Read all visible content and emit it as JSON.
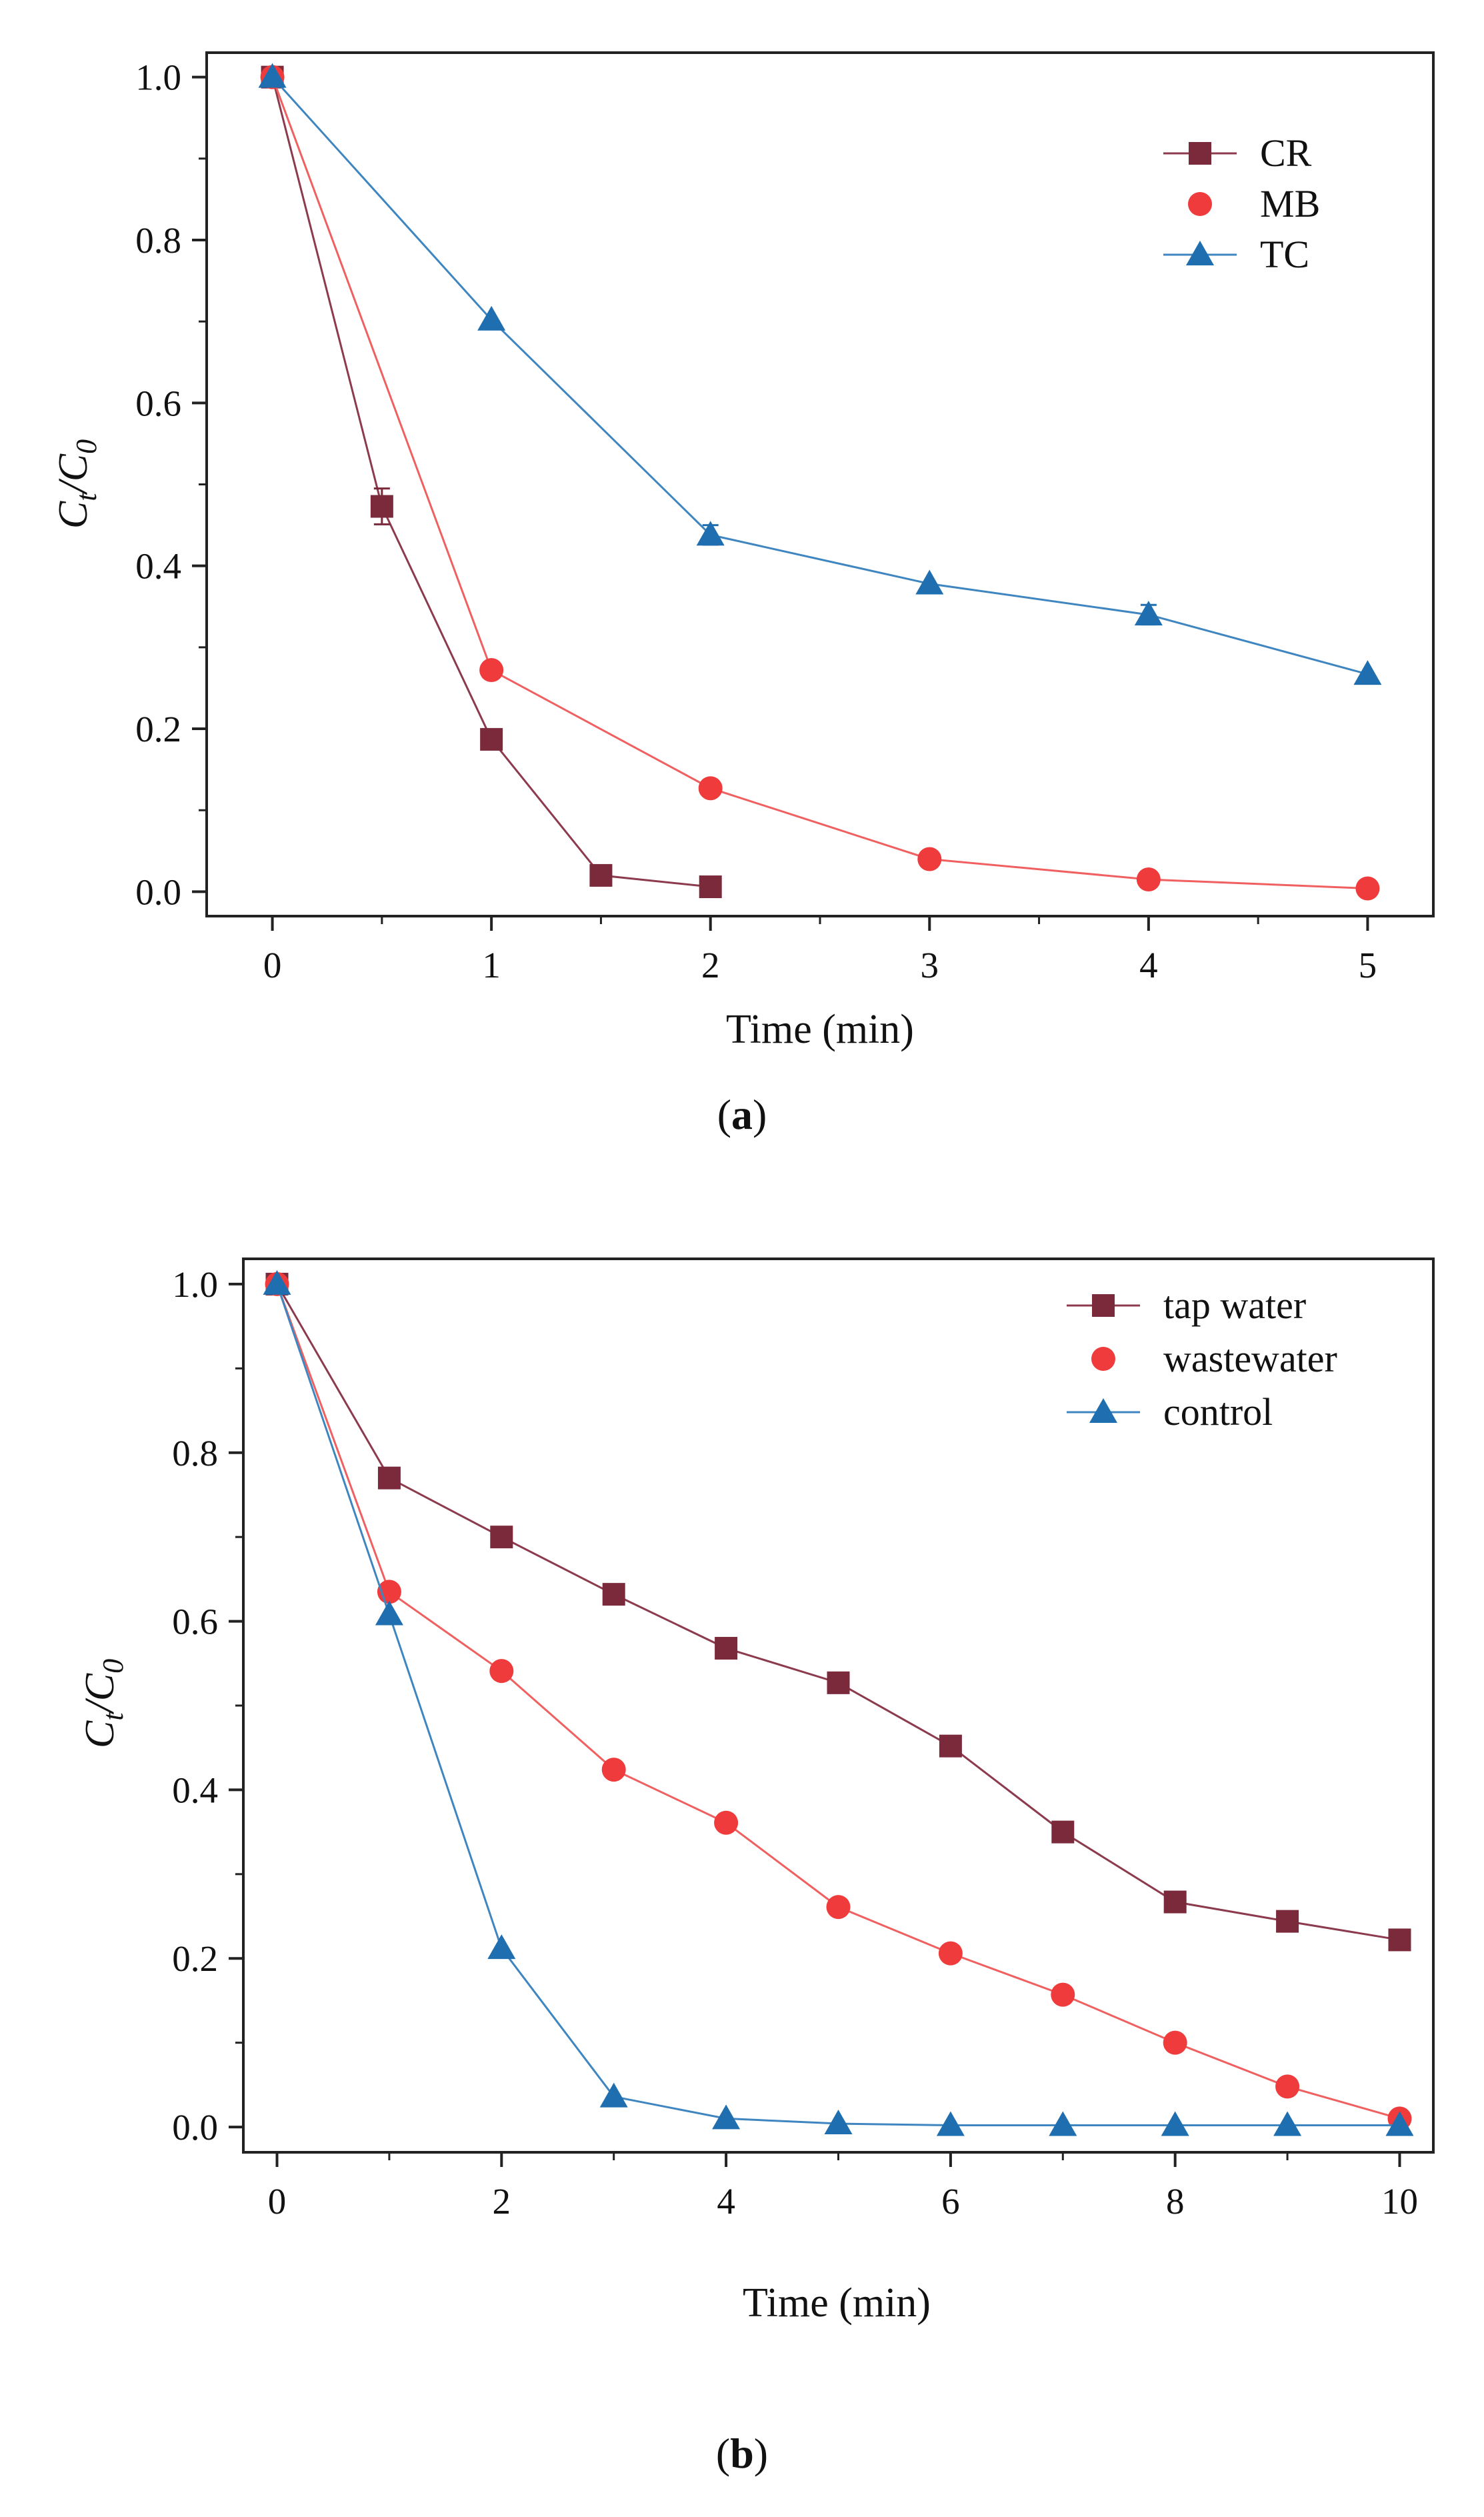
{
  "chart_data": [
    {
      "type": "line",
      "caption_letter": "a",
      "xlabel": "Time (min)",
      "ylabel_main": "C",
      "ylabel_sub_t": "t",
      "ylabel_slash": "/",
      "ylabel_sub_0": "0",
      "xlim": [
        -0.3,
        5.3
      ],
      "ylim": [
        -0.03,
        1.03
      ],
      "xticks": [
        0,
        1,
        2,
        3,
        4,
        5
      ],
      "xtick_labels": [
        "0",
        "1",
        "2",
        "3",
        "4",
        "5"
      ],
      "yticks": [
        0.0,
        0.2,
        0.4,
        0.6,
        0.8,
        1.0
      ],
      "ytick_labels": [
        "0.0",
        "0.2",
        "0.4",
        "0.6",
        "0.8",
        "1.0"
      ],
      "legend_position": "top-right",
      "series": [
        {
          "name": "CR",
          "marker": "square",
          "color": "#7b2a3c",
          "line_color": "#8c3a4d",
          "x": [
            0,
            0.5,
            1,
            1.5,
            2
          ],
          "y": [
            1.0,
            0.473,
            0.187,
            0.02,
            0.006
          ],
          "err": [
            0,
            0.022,
            0,
            0,
            0
          ]
        },
        {
          "name": "MB",
          "marker": "circle",
          "color": "#ef3b3b",
          "line_color": "#f06060",
          "x": [
            0,
            1,
            2,
            3,
            4,
            5
          ],
          "y": [
            1.0,
            0.272,
            0.127,
            0.04,
            0.015,
            0.004
          ],
          "err": [
            0,
            0,
            0,
            0,
            0,
            0
          ]
        },
        {
          "name": "TC",
          "marker": "triangle",
          "color": "#1f6fb0",
          "line_color": "#3f86c0",
          "x": [
            0,
            1,
            2,
            3,
            4,
            5
          ],
          "y": [
            1.0,
            0.702,
            0.438,
            0.378,
            0.34,
            0.267
          ],
          "err": [
            0,
            0,
            0.012,
            0,
            0.012,
            0
          ]
        }
      ]
    },
    {
      "type": "line",
      "caption_letter": "b",
      "xlabel": "Time (min)",
      "ylabel_main": "C",
      "ylabel_sub_t": "t",
      "ylabel_slash": "/",
      "ylabel_sub_0": "0",
      "xlim": [
        -0.3,
        10.3
      ],
      "ylim": [
        -0.03,
        1.03
      ],
      "xticks": [
        0,
        2,
        4,
        6,
        8,
        10
      ],
      "xtick_labels": [
        "0",
        "2",
        "4",
        "6",
        "8",
        "10"
      ],
      "yticks": [
        0.0,
        0.2,
        0.4,
        0.6,
        0.8,
        1.0
      ],
      "ytick_labels": [
        "0.0",
        "0.2",
        "0.4",
        "0.6",
        "0.8",
        "1.0"
      ],
      "legend_position": "top-right",
      "series": [
        {
          "name": "tap water",
          "marker": "square",
          "color": "#7b2a3c",
          "line_color": "#8c3a4d",
          "x": [
            0,
            1,
            2,
            3,
            4,
            5,
            6,
            7,
            8,
            9,
            10
          ],
          "y": [
            1.0,
            0.77,
            0.7,
            0.632,
            0.568,
            0.527,
            0.452,
            0.35,
            0.267,
            0.244,
            0.222
          ]
        },
        {
          "name": "wastewater",
          "marker": "circle",
          "color": "#ef3b3b",
          "line_color": "#f06060",
          "x": [
            0,
            1,
            2,
            3,
            4,
            5,
            6,
            7,
            8,
            9,
            10
          ],
          "y": [
            1.0,
            0.635,
            0.541,
            0.424,
            0.361,
            0.261,
            0.206,
            0.157,
            0.1,
            0.048,
            0.01
          ]
        },
        {
          "name": "control",
          "marker": "triangle",
          "color": "#1f6fb0",
          "line_color": "#3f86c0",
          "x": [
            0,
            1,
            2,
            3,
            4,
            5,
            6,
            7,
            8,
            9,
            10
          ],
          "y": [
            1.0,
            0.608,
            0.212,
            0.036,
            0.01,
            0.004,
            0.002,
            0.002,
            0.002,
            0.002,
            0.002
          ]
        }
      ]
    }
  ]
}
